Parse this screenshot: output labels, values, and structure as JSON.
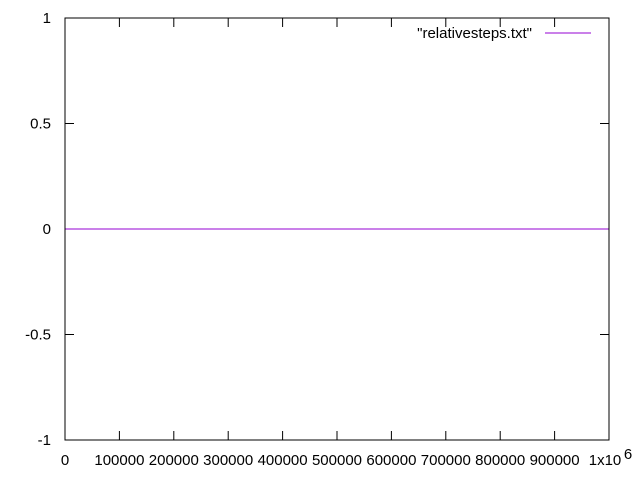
{
  "chart_data": {
    "type": "line",
    "title": "",
    "xlabel": "",
    "ylabel": "",
    "xlim": [
      0,
      1000000
    ],
    "ylim": [
      -1,
      1
    ],
    "x_ticks": [
      {
        "value": 0,
        "label": "0"
      },
      {
        "value": 100000,
        "label": "100000"
      },
      {
        "value": 200000,
        "label": "200000"
      },
      {
        "value": 300000,
        "label": "300000"
      },
      {
        "value": 400000,
        "label": "400000"
      },
      {
        "value": 500000,
        "label": "500000"
      },
      {
        "value": 600000,
        "label": "600000"
      },
      {
        "value": 700000,
        "label": "700000"
      },
      {
        "value": 800000,
        "label": "800000"
      },
      {
        "value": 900000,
        "label": "900000"
      },
      {
        "value": 1000000,
        "label": "1x10",
        "exponent": "6"
      }
    ],
    "y_ticks": [
      {
        "value": 1,
        "label": "1"
      },
      {
        "value": 0.5,
        "label": "0.5"
      },
      {
        "value": 0,
        "label": "0"
      },
      {
        "value": -0.5,
        "label": "-0.5"
      },
      {
        "value": -1,
        "label": "-1"
      }
    ],
    "grid": false,
    "legend_position": "top-right",
    "series": [
      {
        "name": "\"relativesteps.txt\"",
        "color": "#9400d3",
        "x": [
          0,
          1000000
        ],
        "y": [
          0,
          0
        ]
      }
    ]
  }
}
